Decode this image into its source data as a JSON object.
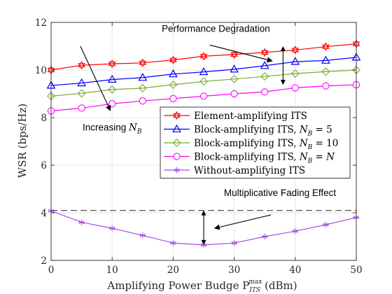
{
  "chart_data": {
    "type": "line",
    "xlabel": "Amplifying Power Budge P",
    "xlabel_sup": "max",
    "xlabel_sub": "ITS",
    "xlabel_unit": "(dBm)",
    "ylabel": "WSR (bps/Hz)",
    "xlim": [
      0,
      50
    ],
    "ylim": [
      2,
      12
    ],
    "xticks": [
      "0",
      "10",
      "20",
      "30",
      "40",
      "50"
    ],
    "yticks": [
      "2",
      "4",
      "6",
      "8",
      "10",
      "12"
    ],
    "grid": true,
    "legend_position": "center-right",
    "x": [
      0,
      5,
      10,
      15,
      20,
      25,
      30,
      35,
      40,
      45,
      50
    ],
    "series": [
      {
        "name": "Element-amplifying ITS",
        "color": "#ff0000",
        "marker": "hexagram",
        "values": [
          10.0,
          10.2,
          10.26,
          10.3,
          10.42,
          10.58,
          10.65,
          10.74,
          10.84,
          10.98,
          11.1
        ]
      },
      {
        "name": "Block-amplifying ITS, N_B = 5",
        "legend_main": "Block-amplifying ITS, ",
        "legend_var": "N",
        "legend_sub": "B",
        "legend_tail": " = 5",
        "color": "#0000ff",
        "marker": "triangle",
        "values": [
          9.35,
          9.45,
          9.6,
          9.68,
          9.83,
          9.92,
          10.03,
          10.18,
          10.35,
          10.4,
          10.53
        ]
      },
      {
        "name": "Block-amplifying ITS, N_B = 10",
        "legend_main": "Block-amplifying ITS, ",
        "legend_var": "N",
        "legend_sub": "B",
        "legend_tail": " = 10",
        "color": "#77ac30",
        "marker": "diamond",
        "values": [
          8.9,
          9.02,
          9.18,
          9.24,
          9.38,
          9.52,
          9.62,
          9.73,
          9.85,
          9.93,
          10.0
        ]
      },
      {
        "name": "Block-amplifying ITS, N_B = N",
        "legend_main": "Block-amplifying ITS, ",
        "legend_var": "N",
        "legend_sub": "B",
        "legend_tail": " = N",
        "color": "#ff00ff",
        "marker": "circle",
        "values": [
          8.28,
          8.4,
          8.58,
          8.7,
          8.8,
          8.9,
          9.0,
          9.08,
          9.25,
          9.33,
          9.38
        ]
      },
      {
        "name": "Without-amplifying ITS",
        "color": "#a34ee8",
        "marker": "asterisk",
        "values": [
          4.08,
          3.6,
          3.35,
          3.05,
          2.73,
          2.65,
          2.73,
          3.0,
          3.23,
          3.5,
          3.8
        ]
      }
    ],
    "reference_line": {
      "y": 4.1,
      "style": "dashed",
      "color": "#555555"
    },
    "annotations": [
      {
        "label": "Performance Degradation",
        "text_x": 27,
        "text_y": 11.6,
        "arrow_from": [
          26,
          11.05
        ],
        "arrow_to": [
          36.2,
          10.38
        ]
      },
      {
        "label_main": "Increasing ",
        "label_var": "N",
        "label_sub": "B",
        "label": "Increasing N_B",
        "text_x": 10.0,
        "text_y": 7.45,
        "arrow_from": [
          4.8,
          11.0
        ],
        "arrow_to": [
          9.7,
          8.3
        ]
      },
      {
        "label": "Multiplicative Fading Effect",
        "text_x": 37.5,
        "text_y": 4.7,
        "arrow_from": [
          36.0,
          3.91
        ],
        "arrow_to": [
          26.8,
          3.35
        ]
      }
    ],
    "double_arrows": [
      {
        "x": 38.0,
        "y1": 11.0,
        "y2": 9.38
      },
      {
        "x": 25.0,
        "y1": 4.1,
        "y2": 2.65
      }
    ]
  }
}
